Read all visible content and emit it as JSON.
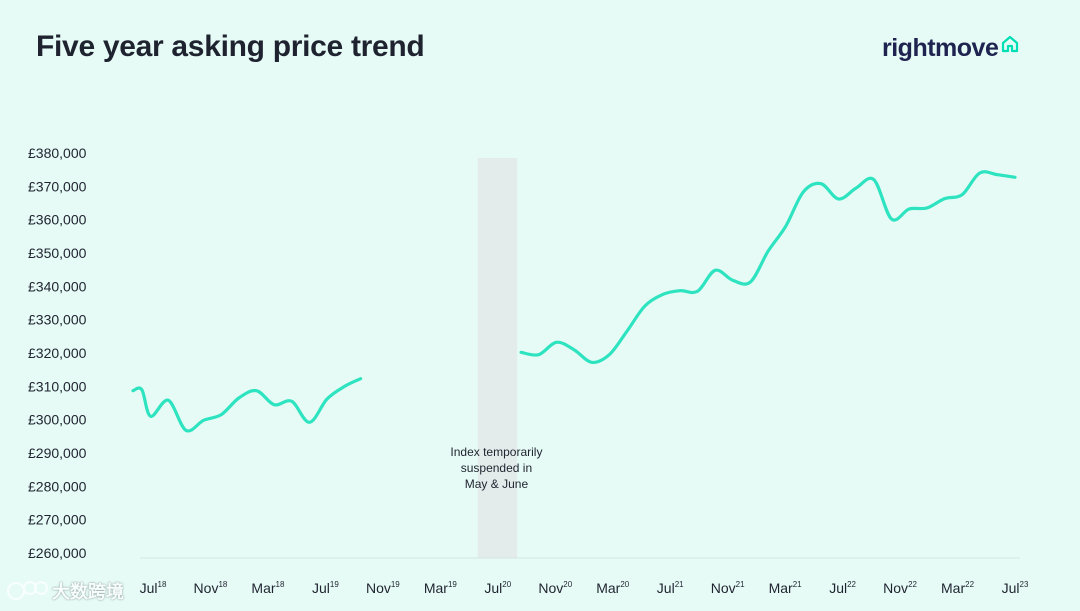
{
  "header": {
    "title": "Five year asking price trend"
  },
  "brand": {
    "name": "rightmove",
    "icon": "house-outline-icon",
    "icon_color": "#00deb6"
  },
  "watermark": {
    "text": "大数跨境",
    "icon": "chat-bubbles-icon"
  },
  "chart_data": {
    "type": "line",
    "title": "Five year asking price trend",
    "xlabel": "",
    "ylabel": "",
    "ylim": [
      260000,
      380000
    ],
    "yticks": [
      380000,
      370000,
      360000,
      350000,
      340000,
      330000,
      320000,
      310000,
      300000,
      290000,
      280000,
      270000,
      260000
    ],
    "ytick_labels": [
      "£380,000",
      "£370,000",
      "£360,000",
      "£350,000",
      "£340,000",
      "£330,000",
      "£320,000",
      "£310,000",
      "£300,000",
      "£290,000",
      "£280,000",
      "£270,000",
      "£260,000"
    ],
    "xtick_labels": [
      {
        "label": "Jul",
        "sup": "18"
      },
      {
        "label": "Nov",
        "sup": "18"
      },
      {
        "label": "Mar",
        "sup": "18"
      },
      {
        "label": "Jul",
        "sup": "19"
      },
      {
        "label": "Nov",
        "sup": "19"
      },
      {
        "label": "Mar",
        "sup": "19"
      },
      {
        "label": "Jul",
        "sup": "20"
      },
      {
        "label": "Nov",
        "sup": "20"
      },
      {
        "label": "Mar",
        "sup": "20"
      },
      {
        "label": "Jul",
        "sup": "21"
      },
      {
        "label": "Nov",
        "sup": "21"
      },
      {
        "label": "Mar",
        "sup": "21"
      },
      {
        "label": "Jul",
        "sup": "22"
      },
      {
        "label": "Nov",
        "sup": "22"
      },
      {
        "label": "Mar",
        "sup": "22"
      },
      {
        "label": "Jul",
        "sup": "23"
      }
    ],
    "line_color": "#2ee3bf",
    "gap": {
      "start_month": 20,
      "end_month": 22,
      "color": "#e4eceb"
    },
    "annotation": [
      "Index temporarily",
      "suspended in",
      "May & June"
    ],
    "grid": false,
    "legend": "none",
    "series": [
      {
        "segments": [
          [
            [
              0,
              308700
            ],
            [
              0.5,
              309000
            ],
            [
              1,
              301000
            ],
            [
              2,
              305800
            ],
            [
              3,
              296800
            ],
            [
              4,
              299800
            ],
            [
              5,
              301500
            ],
            [
              6,
              306500
            ],
            [
              7,
              308700
            ],
            [
              8,
              304500
            ],
            [
              9,
              305500
            ],
            [
              10,
              299200
            ],
            [
              11,
              306200
            ],
            [
              12,
              310000
            ],
            [
              12.9,
              312300
            ]
          ],
          [
            [
              22,
              320200
            ],
            [
              23,
              319500
            ],
            [
              24,
              323200
            ],
            [
              25,
              321000
            ],
            [
              26,
              317200
            ],
            [
              27,
              319500
            ],
            [
              28,
              326500
            ],
            [
              29,
              334000
            ],
            [
              30,
              337500
            ],
            [
              31,
              338700
            ],
            [
              32,
              338500
            ],
            [
              33,
              344800
            ],
            [
              34,
              341800
            ],
            [
              35,
              341300
            ],
            [
              36,
              350500
            ],
            [
              37,
              358000
            ],
            [
              38,
              368300
            ],
            [
              39,
              370800
            ],
            [
              40,
              366200
            ],
            [
              41,
              369500
            ],
            [
              42,
              372000
            ],
            [
              43,
              360200
            ],
            [
              44,
              363200
            ],
            [
              45,
              363500
            ],
            [
              46,
              366300
            ],
            [
              47,
              367500
            ],
            [
              48,
              374000
            ],
            [
              49,
              373500
            ],
            [
              50,
              372700
            ]
          ]
        ]
      }
    ]
  }
}
